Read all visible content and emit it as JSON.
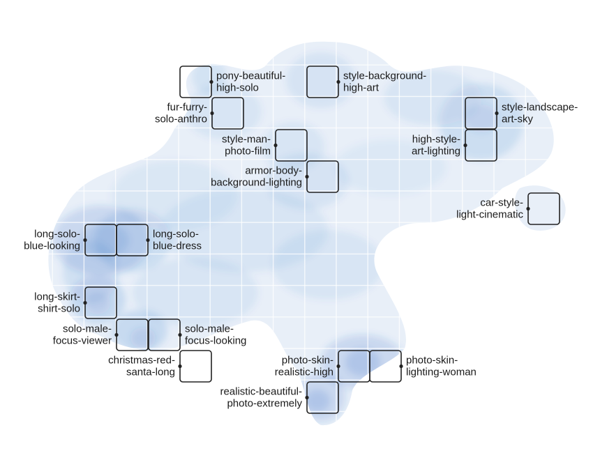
{
  "chart_data": {
    "type": "heatmap",
    "title": "",
    "xlabel": "",
    "ylabel": "",
    "grid": true,
    "legend": "none",
    "colors": {
      "density_base": "#1f5fbf",
      "grid_line": "#ffffff",
      "box_stroke": "#222222",
      "text": "#1a1a1a"
    },
    "highlighted_clusters": [
      {
        "id": "pony",
        "lines": [
          "pony-beautiful-",
          "high-solo"
        ]
      },
      {
        "id": "style-bg",
        "lines": [
          "style-background-",
          "high-art"
        ]
      },
      {
        "id": "fur",
        "lines": [
          "fur-furry-",
          "solo-anthro"
        ]
      },
      {
        "id": "style-landscape",
        "lines": [
          "style-landscape-",
          "art-sky"
        ]
      },
      {
        "id": "style-man",
        "lines": [
          "style-man-",
          "photo-film"
        ]
      },
      {
        "id": "high-style",
        "lines": [
          "high-style-",
          "art-lighting"
        ]
      },
      {
        "id": "armor",
        "lines": [
          "armor-body-",
          "background-lighting"
        ]
      },
      {
        "id": "car",
        "lines": [
          "car-style-",
          "light-cinematic"
        ]
      },
      {
        "id": "long-solo-blue-looking",
        "lines": [
          "long-solo-",
          "blue-looking"
        ]
      },
      {
        "id": "long-solo-blue-dress",
        "lines": [
          "long-solo-",
          "blue-dress"
        ]
      },
      {
        "id": "long-skirt",
        "lines": [
          "long-skirt-",
          "shirt-solo"
        ]
      },
      {
        "id": "solo-male-viewer",
        "lines": [
          "solo-male-",
          "focus-viewer"
        ]
      },
      {
        "id": "solo-male-looking",
        "lines": [
          "solo-male-",
          "focus-looking"
        ]
      },
      {
        "id": "christmas",
        "lines": [
          "christmas-red-",
          "santa-long"
        ]
      },
      {
        "id": "photo-skin-realistic",
        "lines": [
          "photo-skin-",
          "realistic-high"
        ]
      },
      {
        "id": "photo-skin-woman",
        "lines": [
          "photo-skin-",
          "lighting-woman"
        ]
      },
      {
        "id": "realistic-beautiful",
        "lines": [
          "realistic-beautiful-",
          "photo-extremely"
        ]
      }
    ]
  }
}
